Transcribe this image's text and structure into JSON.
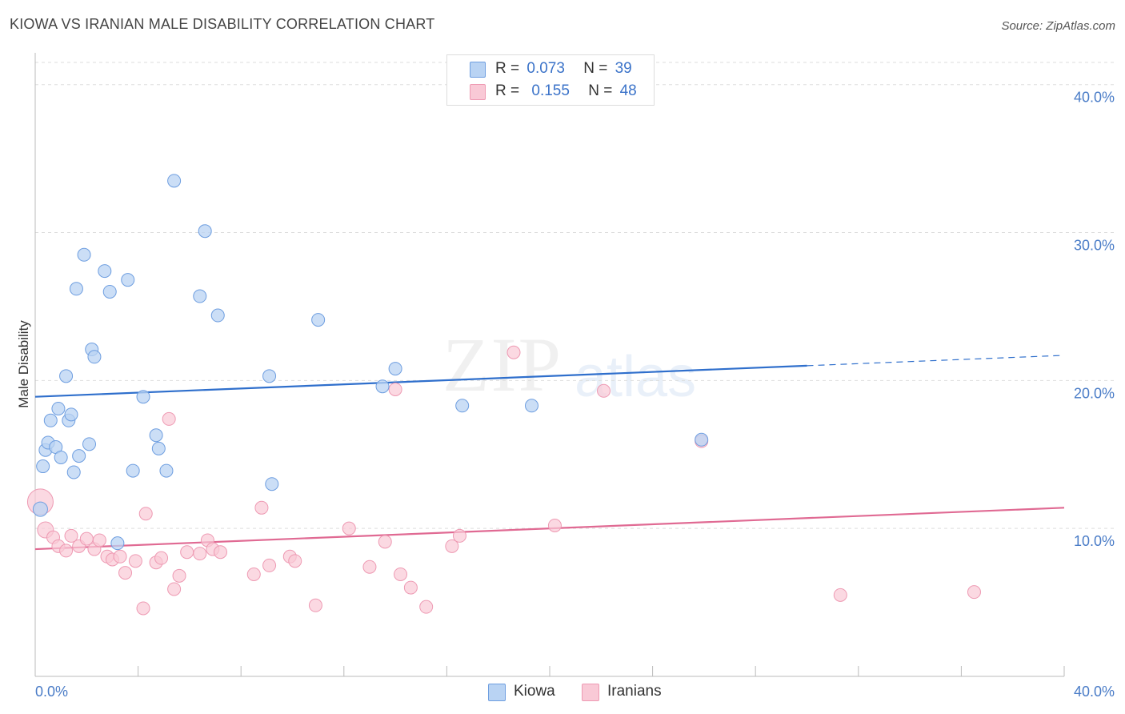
{
  "title": "KIOWA VS IRANIAN MALE DISABILITY CORRELATION CHART",
  "source": "Source: ZipAtlas.com",
  "watermark": {
    "zip": "ZIP",
    "atlas": "atlas"
  },
  "legend": {
    "kiowa": {
      "r_label": "R =",
      "r_value": "0.073",
      "n_label": "N =",
      "n_value": "39"
    },
    "iranians": {
      "r_label": "R =",
      "r_value": "0.155",
      "n_label": "N =",
      "n_value": "48"
    }
  },
  "bottom_legend": {
    "kiowa": "Kiowa",
    "iranians": "Iranians"
  },
  "colors": {
    "kiowa_fill": "#b9d3f3",
    "kiowa_stroke": "#6e9ee0",
    "kiowa_line": "#2f6fcc",
    "iranians_fill": "#f9c9d6",
    "iranians_stroke": "#ee9ab3",
    "iranians_line": "#e06a93",
    "axis_label": "#4a7cc7",
    "grid": "#dddddd"
  },
  "chart_data": {
    "type": "scatter",
    "title": "KIOWA VS IRANIAN MALE DISABILITY CORRELATION CHART",
    "xlabel": "",
    "ylabel": "Male Disability",
    "xlim": [
      0,
      40
    ],
    "ylim": [
      0,
      41.5
    ],
    "x_tick_labels": [
      "0.0%",
      "40.0%"
    ],
    "y_ticks": [
      10,
      20,
      30,
      40
    ],
    "y_tick_labels": [
      "10.0%",
      "20.0%",
      "30.0%",
      "40.0%"
    ],
    "series": [
      {
        "name": "Kiowa",
        "R": 0.073,
        "N": 39,
        "trend": {
          "x_start": 0,
          "y_start": 18.9,
          "x_end": 30.0,
          "y_end": 21.0,
          "dashed_to_x": 40,
          "dashed_to_y": 21.7
        },
        "points": [
          [
            0.2,
            11.3
          ],
          [
            0.3,
            14.2
          ],
          [
            0.4,
            15.3
          ],
          [
            0.5,
            15.8
          ],
          [
            0.6,
            17.3
          ],
          [
            0.8,
            15.5
          ],
          [
            0.9,
            18.1
          ],
          [
            1.0,
            14.8
          ],
          [
            1.2,
            20.3
          ],
          [
            1.3,
            17.3
          ],
          [
            1.4,
            17.7
          ],
          [
            1.5,
            13.8
          ],
          [
            1.6,
            26.2
          ],
          [
            1.7,
            14.9
          ],
          [
            1.9,
            28.5
          ],
          [
            2.1,
            15.7
          ],
          [
            2.2,
            22.1
          ],
          [
            2.3,
            21.6
          ],
          [
            2.7,
            27.4
          ],
          [
            2.9,
            26.0
          ],
          [
            3.2,
            9.0
          ],
          [
            3.6,
            26.8
          ],
          [
            3.8,
            13.9
          ],
          [
            4.2,
            18.9
          ],
          [
            4.7,
            16.3
          ],
          [
            4.8,
            15.4
          ],
          [
            5.1,
            13.9
          ],
          [
            5.4,
            33.5
          ],
          [
            6.4,
            25.7
          ],
          [
            6.6,
            30.1
          ],
          [
            7.1,
            24.4
          ],
          [
            9.1,
            20.3
          ],
          [
            9.2,
            13.0
          ],
          [
            11.0,
            24.1
          ],
          [
            13.5,
            19.6
          ],
          [
            14.0,
            20.8
          ],
          [
            16.6,
            18.3
          ],
          [
            19.3,
            18.3
          ],
          [
            25.9,
            16.0
          ]
        ]
      },
      {
        "name": "Iranians",
        "R": 0.155,
        "N": 48,
        "trend": {
          "x_start": 0,
          "y_start": 8.6,
          "x_end": 40,
          "y_end": 11.4
        },
        "points": [
          [
            0.2,
            11.8
          ],
          [
            0.4,
            9.9
          ],
          [
            0.7,
            9.4
          ],
          [
            0.9,
            8.8
          ],
          [
            1.2,
            8.5
          ],
          [
            1.4,
            9.5
          ],
          [
            1.7,
            8.8
          ],
          [
            2.0,
            9.3
          ],
          [
            2.3,
            8.6
          ],
          [
            2.5,
            9.2
          ],
          [
            2.8,
            8.1
          ],
          [
            3.0,
            7.9
          ],
          [
            3.3,
            8.1
          ],
          [
            3.5,
            7.0
          ],
          [
            3.9,
            7.8
          ],
          [
            4.2,
            4.6
          ],
          [
            4.3,
            11.0
          ],
          [
            4.7,
            7.7
          ],
          [
            4.9,
            8.0
          ],
          [
            5.2,
            17.4
          ],
          [
            5.4,
            5.9
          ],
          [
            5.6,
            6.8
          ],
          [
            5.9,
            8.4
          ],
          [
            6.4,
            8.3
          ],
          [
            6.7,
            9.2
          ],
          [
            6.9,
            8.6
          ],
          [
            7.2,
            8.4
          ],
          [
            8.5,
            6.9
          ],
          [
            8.8,
            11.4
          ],
          [
            9.1,
            7.5
          ],
          [
            9.9,
            8.1
          ],
          [
            10.1,
            7.8
          ],
          [
            10.9,
            4.8
          ],
          [
            12.2,
            10.0
          ],
          [
            13.0,
            7.4
          ],
          [
            13.6,
            9.1
          ],
          [
            14.2,
            6.9
          ],
          [
            14.0,
            19.4
          ],
          [
            14.6,
            6.0
          ],
          [
            15.2,
            4.7
          ],
          [
            16.2,
            8.8
          ],
          [
            16.5,
            9.5
          ],
          [
            18.6,
            21.9
          ],
          [
            20.2,
            10.2
          ],
          [
            22.1,
            19.3
          ],
          [
            25.9,
            15.9
          ],
          [
            31.3,
            5.5
          ],
          [
            36.5,
            5.7
          ]
        ]
      }
    ]
  }
}
